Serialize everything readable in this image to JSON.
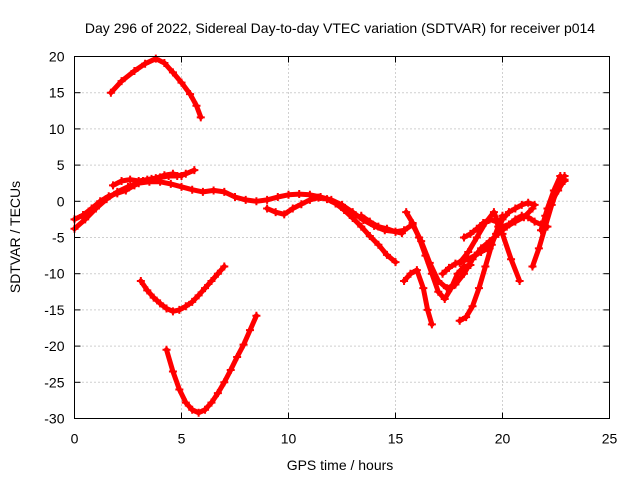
{
  "chart_data": {
    "type": "line",
    "title": "Day 296 of 2022, Sidereal Day-to-day VTEC variation (SDTVAR) for receiver p014",
    "xlabel": "GPS time / hours",
    "ylabel": "SDTVAR / TECUs",
    "xlim": [
      0,
      25
    ],
    "ylim": [
      -30,
      20
    ],
    "xticks": [
      0,
      5,
      10,
      15,
      20,
      25
    ],
    "yticks": [
      -30,
      -25,
      -20,
      -15,
      -10,
      -5,
      0,
      5,
      10,
      15,
      20
    ],
    "grid": true,
    "legend": "none",
    "series_color": "#ff0000",
    "series": [
      {
        "x": [
          1.7,
          2.2,
          2.8,
          3.3,
          3.8,
          4.2,
          4.6,
          5.0,
          5.4,
          5.7,
          5.9
        ],
        "y": [
          15,
          16.6,
          18,
          19,
          19.7,
          19.1,
          17.8,
          16.4,
          14.8,
          13.2,
          11.6
        ]
      },
      {
        "x": [
          0.0,
          0.5,
          1.0,
          1.5,
          2.0,
          2.5,
          3.0,
          3.5,
          4.0,
          4.5,
          5.0,
          5.5,
          6.0,
          6.5,
          7.0,
          7.5,
          8.0,
          8.5,
          9.0,
          9.5,
          10.0,
          10.5,
          11.0,
          11.5,
          12.0,
          12.5,
          13.0,
          13.5,
          14.0,
          14.5,
          15.0,
          15.3
        ],
        "y": [
          -3.8,
          -2.5,
          -1.0,
          0.3,
          1.3,
          2.0,
          2.5,
          2.7,
          2.7,
          2.4,
          2.0,
          1.6,
          1.3,
          1.5,
          1.3,
          0.6,
          0.2,
          0.0,
          0.2,
          0.6,
          0.9,
          1.0,
          0.9,
          0.6,
          0.2,
          -0.5,
          -1.5,
          -2.6,
          -3.4,
          -4.0,
          -4.2,
          -4.4
        ]
      },
      {
        "x": [
          0.0,
          0.4,
          0.8,
          1.2,
          1.6,
          2.0,
          2.4,
          2.8,
          3.2,
          3.6,
          4.0,
          4.4,
          4.8,
          5.2,
          5.6
        ],
        "y": [
          -2.5,
          -1.9,
          -1.0,
          0.0,
          0.7,
          1.1,
          1.5,
          2.2,
          2.8,
          3.1,
          3.3,
          3.5,
          3.5,
          3.8,
          4.3
        ]
      },
      {
        "x": [
          1.8,
          2.2,
          2.6,
          3.0,
          3.4,
          3.8,
          4.2,
          4.6,
          5.0
        ],
        "y": [
          2.2,
          2.8,
          3.0,
          2.8,
          3.0,
          3.2,
          3.6,
          3.8,
          3.5
        ]
      },
      {
        "x": [
          9.0,
          9.4,
          9.8,
          10.2,
          10.6,
          11.0,
          11.4,
          11.8,
          12.2,
          12.6,
          13.0,
          13.4,
          13.8,
          14.2,
          14.6,
          15.0
        ],
        "y": [
          -1.0,
          -1.5,
          -1.8,
          -1.0,
          -0.4,
          0.2,
          0.5,
          0.3,
          -0.3,
          -1.2,
          -2.3,
          -3.5,
          -4.8,
          -6.0,
          -7.4,
          -8.4
        ]
      },
      {
        "x": [
          13.4,
          13.8,
          14.2,
          14.6,
          15.0,
          15.4,
          15.8,
          16.2,
          16.6,
          17.0,
          17.4,
          17.8,
          18.2,
          18.6,
          19.0,
          19.4,
          19.8,
          20.2,
          20.6,
          21.0,
          21.4
        ],
        "y": [
          -2.0,
          -2.8,
          -3.5,
          -3.8,
          -4.2,
          -4.0,
          -3.2,
          -5.5,
          -8.5,
          -11.0,
          -12.0,
          -11.5,
          -10.0,
          -8.0,
          -6.5,
          -5.5,
          -4.5,
          -3.5,
          -2.8,
          -2.2,
          -1.0
        ]
      },
      {
        "x": [
          15.5,
          15.8,
          16.1,
          16.4,
          16.7,
          17.0,
          17.3,
          17.6,
          17.9,
          18.2,
          18.5
        ],
        "y": [
          -1.5,
          -3.0,
          -5.0,
          -7.5,
          -10.0,
          -12.5,
          -13.5,
          -12.0,
          -10.0,
          -9.0,
          -8.8
        ]
      },
      {
        "x": [
          15.4,
          15.7,
          16.0,
          16.3,
          16.5,
          16.7
        ],
        "y": [
          -11.0,
          -10.0,
          -9.5,
          -12.0,
          -15.0,
          -17.0
        ]
      },
      {
        "x": [
          17.2,
          17.5,
          17.8,
          18.1,
          18.4,
          18.7,
          19.0,
          19.3
        ],
        "y": [
          -10.0,
          -9.2,
          -8.6,
          -8.3,
          -8.0,
          -7.5,
          -7.0,
          -6.5
        ]
      },
      {
        "x": [
          18.0,
          18.3,
          18.6,
          18.9,
          19.2,
          19.5,
          19.8,
          20.0
        ],
        "y": [
          -16.5,
          -16.0,
          -14.5,
          -12.0,
          -9.0,
          -6.0,
          -3.5,
          -2.0
        ]
      },
      {
        "x": [
          18.0,
          18.4,
          18.8,
          19.2,
          19.6,
          20.0,
          20.4,
          20.8
        ],
        "y": [
          -8.5,
          -7.0,
          -5.0,
          -3.0,
          -1.5,
          -4.5,
          -8.0,
          -11.0
        ]
      },
      {
        "x": [
          18.2,
          18.5,
          18.8,
          19.1,
          19.4,
          19.7,
          20.0,
          20.3,
          20.6,
          20.9,
          21.2,
          21.5,
          21.8,
          22.1
        ],
        "y": [
          -5.0,
          -4.5,
          -3.8,
          -3.0,
          -2.5,
          -2.8,
          -3.5,
          -3.2,
          -2.5,
          -2.0,
          -2.2,
          -2.8,
          -3.2,
          -3.5
        ]
      },
      {
        "x": [
          19.4,
          19.7,
          20.0,
          20.3,
          20.6,
          20.9,
          21.2,
          21.5
        ],
        "y": [
          -6.5,
          -4.5,
          -2.5,
          -1.5,
          -1.0,
          -0.5,
          -0.2,
          -0.5
        ]
      },
      {
        "x": [
          21.4,
          21.7,
          22.0,
          22.3,
          22.6,
          22.9
        ],
        "y": [
          -9.0,
          -6.5,
          -3.5,
          -0.5,
          2.0,
          3.5
        ]
      },
      {
        "x": [
          21.8,
          22.1,
          22.4,
          22.7,
          22.9
        ],
        "y": [
          -4.0,
          -1.0,
          1.5,
          3.5,
          2.8
        ]
      },
      {
        "x": [
          22.0,
          22.3,
          22.6,
          22.9
        ],
        "y": [
          -2.0,
          0.0,
          1.5,
          3.0
        ]
      },
      {
        "x": [
          3.1,
          3.4,
          3.7,
          4.0,
          4.3,
          4.6,
          4.9,
          5.2,
          5.5,
          5.8,
          6.1,
          6.4,
          6.7,
          7.0
        ],
        "y": [
          -11.0,
          -12.3,
          -13.3,
          -14.1,
          -14.8,
          -15.2,
          -15.0,
          -14.5,
          -13.9,
          -13.0,
          -12.0,
          -11.0,
          -10.0,
          -9.0
        ]
      },
      {
        "x": [
          4.3,
          4.6,
          4.9,
          5.2,
          5.5,
          5.8,
          6.1,
          6.4,
          6.7,
          7.0,
          7.3,
          7.6,
          7.9,
          8.2,
          8.5
        ],
        "y": [
          -20.5,
          -23.5,
          -26.0,
          -27.8,
          -28.8,
          -29.2,
          -28.8,
          -27.8,
          -26.5,
          -25.0,
          -23.3,
          -21.5,
          -19.8,
          -17.8,
          -15.8
        ]
      }
    ]
  }
}
